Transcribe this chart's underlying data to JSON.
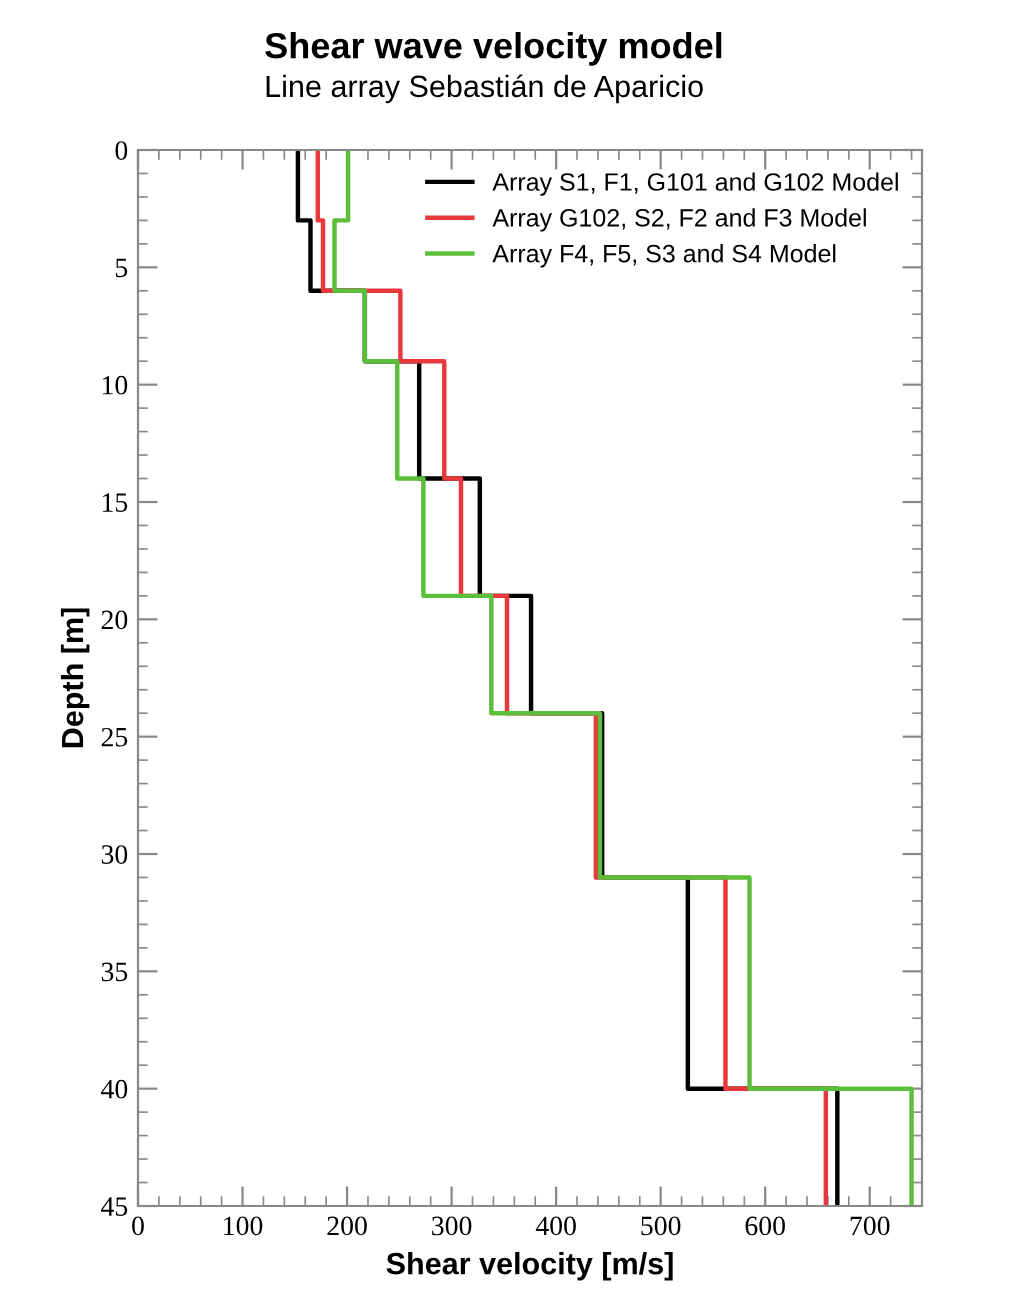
{
  "chart_data": {
    "type": "line",
    "title": "Shear wave velocity model",
    "subtitle": "Line array Sebastián de Aparicio",
    "xlabel": "Shear velocity [m/s]",
    "ylabel": "Depth [m]",
    "xlim": [
      0,
      750
    ],
    "xticks": [
      0,
      100,
      200,
      300,
      400,
      500,
      600,
      700
    ],
    "ylim": [
      45,
      0
    ],
    "yticks": [
      0,
      5,
      10,
      15,
      20,
      25,
      30,
      35,
      40,
      45
    ],
    "grid": false,
    "legend": "top right",
    "marker": "none",
    "line_style": "solid",
    "series": [
      {
        "name": "Array S1, F1, G101 and G102 Model",
        "color": "#000000",
        "x": [
          153,
          153,
          165,
          165,
          217,
          217,
          269,
          269,
          327,
          327,
          376,
          376,
          444,
          444,
          526,
          526,
          669,
          669
        ],
        "values": [
          0,
          3,
          3,
          6,
          6,
          9,
          9,
          14,
          14,
          19,
          19,
          24,
          24,
          31,
          31,
          40,
          40,
          45
        ]
      },
      {
        "name": "Array G102, S2, F2 and F3 Model",
        "color": "#e8383b",
        "x": [
          172,
          172,
          177,
          177,
          251,
          251,
          293,
          293,
          309,
          309,
          353,
          353,
          438,
          438,
          562,
          562,
          658,
          658
        ],
        "values": [
          0,
          3,
          3,
          6,
          6,
          9,
          9,
          14,
          14,
          19,
          19,
          24,
          24,
          31,
          31,
          40,
          40,
          45
        ]
      },
      {
        "name": "Array F4, F5, S3 and S4 Model",
        "color": "#5cbf3c",
        "x": [
          201,
          201,
          188,
          188,
          217,
          217,
          248,
          248,
          273,
          273,
          338,
          338,
          442,
          442,
          585,
          585,
          740,
          740
        ],
        "values": [
          0,
          3,
          3,
          6,
          6,
          9,
          9,
          14,
          14,
          19,
          19,
          24,
          24,
          31,
          31,
          40,
          40,
          45
        ]
      }
    ]
  }
}
